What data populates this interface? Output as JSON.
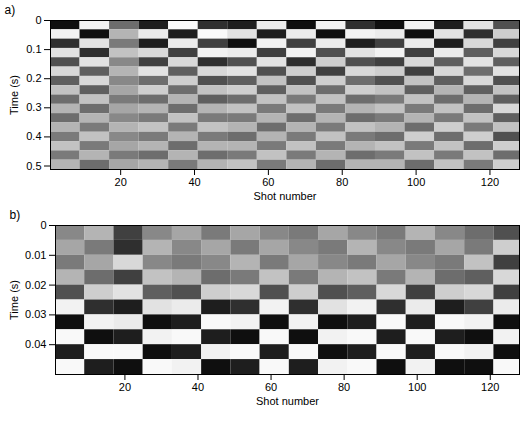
{
  "chart_data": [
    {
      "type": "heatmap",
      "title": "a)",
      "x_label": "Shot number",
      "y_label": "Time (s)",
      "xlim": [
        1,
        128
      ],
      "ylim": [
        0,
        0.512
      ],
      "xticks": [
        20,
        40,
        60,
        80,
        100,
        120
      ],
      "yticks": [
        0,
        0.1,
        0.2,
        0.3,
        0.4,
        0.5
      ],
      "x_edges": [
        1,
        9,
        17,
        25,
        33,
        41,
        49,
        57,
        65,
        73,
        81,
        89,
        97,
        105,
        113,
        121,
        128
      ],
      "y_edges": [
        0,
        0.032,
        0.064,
        0.096,
        0.128,
        0.16,
        0.192,
        0.224,
        0.256,
        0.288,
        0.32,
        0.352,
        0.384,
        0.416,
        0.448,
        0.48,
        0.512
      ],
      "clim": [
        -1,
        1
      ],
      "cells": [
        [
          0.9,
          -0.8,
          0.3,
          0.8,
          -0.9,
          0.7,
          0.8,
          -0.7,
          0.9,
          -0.8,
          0.7,
          0.9,
          -0.8,
          0.8,
          -0.6,
          0.5
        ],
        [
          -0.8,
          0.9,
          -0.2,
          -0.7,
          0.8,
          -0.9,
          -0.6,
          0.8,
          -0.7,
          0.9,
          -0.8,
          -0.7,
          0.9,
          -0.6,
          0.7,
          -0.4
        ],
        [
          0.7,
          -0.6,
          0.2,
          0.8,
          -0.7,
          0.6,
          0.9,
          -0.8,
          0.6,
          -0.7,
          0.8,
          0.6,
          -0.7,
          0.8,
          -0.5,
          0.6
        ],
        [
          -0.6,
          0.7,
          -0.3,
          -0.5,
          0.6,
          -0.8,
          -0.7,
          0.6,
          -0.8,
          0.5,
          -0.6,
          -0.8,
          0.6,
          -0.7,
          0.4,
          -0.5
        ],
        [
          0.5,
          -0.6,
          0.1,
          0.6,
          -0.5,
          0.7,
          0.5,
          -0.6,
          0.7,
          -0.4,
          0.5,
          0.6,
          -0.5,
          0.4,
          -0.6,
          0.4
        ],
        [
          -0.5,
          0.4,
          -0.2,
          -0.6,
          0.4,
          -0.5,
          -0.6,
          0.5,
          -0.4,
          0.6,
          -0.5,
          -0.4,
          0.6,
          -0.5,
          0.3,
          -0.6
        ],
        [
          0.4,
          -0.5,
          0.1,
          0.3,
          -0.4,
          0.5,
          0.4,
          -0.3,
          0.5,
          -0.4,
          0.3,
          0.5,
          -0.3,
          0.4,
          -0.5,
          0.5
        ],
        [
          -0.3,
          0.4,
          -0.1,
          -0.4,
          0.3,
          -0.3,
          -0.4,
          0.4,
          -0.3,
          0.3,
          -0.4,
          -0.3,
          0.4,
          -0.2,
          0.4,
          -0.3
        ],
        [
          0.3,
          -0.3,
          0.2,
          0.3,
          -0.2,
          0.4,
          0.3,
          -0.3,
          0.2,
          -0.3,
          0.3,
          0.2,
          -0.3,
          0.3,
          -0.2,
          0.4
        ],
        [
          -0.2,
          0.3,
          -0.1,
          -0.2,
          0.3,
          -0.2,
          -0.3,
          0.2,
          -0.3,
          0.2,
          -0.2,
          -0.3,
          0.2,
          -0.3,
          0.3,
          -0.5
        ],
        [
          0.3,
          -0.2,
          0.1,
          0.2,
          -0.3,
          0.2,
          0.2,
          -0.2,
          0.3,
          -0.2,
          0.3,
          0.2,
          -0.2,
          0.2,
          -0.3,
          0.4
        ],
        [
          -0.2,
          0.2,
          -0.2,
          -0.3,
          0.2,
          -0.3,
          -0.2,
          0.3,
          -0.2,
          0.2,
          -0.3,
          -0.2,
          0.3,
          -0.4,
          0.2,
          -0.3
        ],
        [
          0.2,
          -0.3,
          0.1,
          0.2,
          -0.2,
          0.2,
          0.3,
          -0.2,
          0.2,
          -0.3,
          0.2,
          0.3,
          -0.4,
          0.3,
          -0.4,
          0.5
        ],
        [
          -0.3,
          0.2,
          -0.1,
          -0.2,
          0.3,
          -0.2,
          -0.2,
          0.2,
          -0.3,
          0.2,
          -0.2,
          -0.3,
          0.2,
          -0.3,
          0.3,
          -0.4
        ],
        [
          0.2,
          -0.2,
          0.2,
          0.3,
          -0.2,
          0.3,
          0.2,
          -0.3,
          0.2,
          -0.2,
          0.3,
          0.2,
          -0.3,
          0.2,
          -0.3,
          0.3
        ],
        [
          -0.2,
          0.3,
          -0.1,
          -0.2,
          0.2,
          -0.2,
          -0.3,
          0.2,
          -0.2,
          0.3,
          -0.2,
          -0.2,
          0.3,
          -0.3,
          0.2,
          -0.4
        ]
      ]
    },
    {
      "type": "heatmap",
      "title": "b)",
      "x_label": "Shot number",
      "y_label": "Time (s)",
      "xlim": [
        1,
        128
      ],
      "ylim": [
        0,
        0.05
      ],
      "xticks": [
        20,
        40,
        60,
        80,
        100,
        120
      ],
      "yticks": [
        0,
        0.01,
        0.02,
        0.03,
        0.04
      ],
      "x_edges": [
        1,
        9,
        17,
        25,
        33,
        41,
        49,
        57,
        65,
        73,
        81,
        89,
        97,
        105,
        113,
        121,
        128
      ],
      "y_edges": [
        0,
        0.005,
        0.01,
        0.015,
        0.02,
        0.025,
        0.03,
        0.035,
        0.04,
        0.045,
        0.05
      ],
      "clim": [
        -1,
        1
      ],
      "cells": [
        [
          0.1,
          -0.2,
          0.6,
          0.1,
          -0.1,
          0.2,
          -0.1,
          0.1,
          0.2,
          -0.1,
          0.1,
          0.2,
          -0.2,
          0.1,
          0.3,
          0.5
        ],
        [
          -0.1,
          0.2,
          0.7,
          -0.2,
          0.1,
          -0.1,
          0.2,
          -0.1,
          0.1,
          0.2,
          -0.2,
          0.1,
          0.2,
          -0.1,
          0.2,
          -0.4
        ],
        [
          0.2,
          -0.1,
          -0.5,
          0.1,
          0.2,
          0.1,
          -0.2,
          0.2,
          -0.1,
          0.1,
          0.2,
          -0.1,
          0.1,
          0.2,
          -0.3,
          0.6
        ],
        [
          -0.2,
          0.3,
          0.6,
          -0.3,
          -0.2,
          0.3,
          0.2,
          -0.3,
          0.2,
          -0.2,
          -0.3,
          0.2,
          -0.2,
          0.3,
          0.4,
          -0.5
        ],
        [
          0.5,
          -0.4,
          -0.6,
          0.4,
          0.5,
          -0.4,
          -0.5,
          0.5,
          -0.4,
          0.5,
          0.4,
          -0.5,
          0.6,
          -0.4,
          -0.5,
          0.6
        ],
        [
          -0.8,
          0.7,
          0.8,
          -0.6,
          -0.7,
          0.8,
          0.7,
          -0.8,
          0.7,
          -0.6,
          -0.8,
          0.7,
          -0.7,
          0.8,
          0.6,
          -0.7
        ],
        [
          0.9,
          -0.8,
          -0.7,
          0.9,
          0.8,
          -0.9,
          -0.8,
          0.9,
          -0.8,
          0.9,
          0.8,
          -0.9,
          0.8,
          -0.9,
          -0.8,
          0.9
        ],
        [
          -0.9,
          0.9,
          0.8,
          -0.8,
          -0.9,
          0.8,
          0.9,
          -0.9,
          0.9,
          -0.8,
          -0.9,
          0.8,
          -0.9,
          0.8,
          0.9,
          -0.8
        ],
        [
          0.8,
          -0.9,
          -0.9,
          0.9,
          0.8,
          -0.8,
          -0.9,
          0.8,
          -0.9,
          0.9,
          0.8,
          -0.9,
          0.8,
          -0.9,
          -0.8,
          0.9
        ],
        [
          -0.9,
          0.8,
          0.9,
          -0.9,
          -0.8,
          0.9,
          0.8,
          -0.9,
          0.8,
          -0.8,
          -0.9,
          0.9,
          -0.8,
          0.9,
          0.9,
          -0.9
        ]
      ]
    }
  ]
}
